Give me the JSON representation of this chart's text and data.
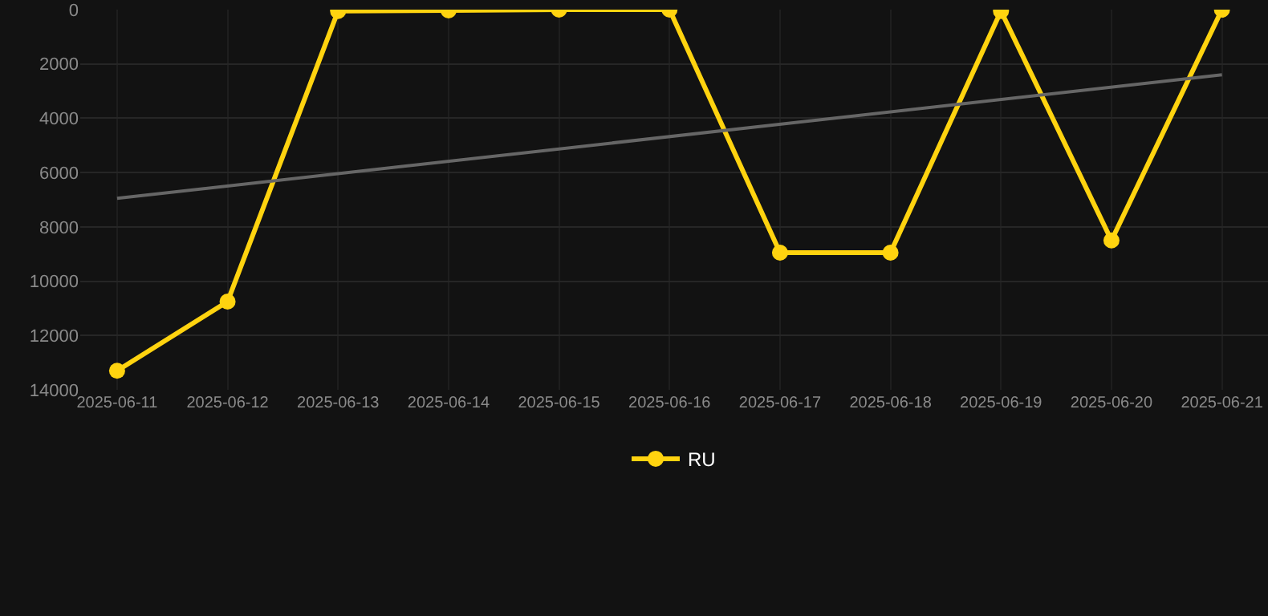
{
  "chart_data": {
    "type": "line",
    "x": [
      "2025-06-11",
      "2025-06-12",
      "2025-06-13",
      "2025-06-14",
      "2025-06-15",
      "2025-06-16",
      "2025-06-17",
      "2025-06-18",
      "2025-06-19",
      "2025-06-20",
      "2025-06-21"
    ],
    "series": [
      {
        "name": "RU",
        "color": "#ffd30f",
        "values": [
          13300,
          10750,
          50,
          30,
          0,
          0,
          8950,
          8950,
          50,
          8500,
          0
        ]
      },
      {
        "type": "line",
        "color": "#666666",
        "x": [
          "2025-06-11",
          "2025-06-21"
        ],
        "values": [
          6950,
          2400
        ],
        "marker": "none"
      }
    ],
    "ylim": [
      14000,
      0
    ],
    "yticks": [
      0,
      2000,
      4000,
      6000,
      8000,
      10000,
      12000,
      14000
    ],
    "xlim": [
      "2025-06-10T16:00",
      "2025-06-21T10:00"
    ],
    "xticks": [
      "2025-06-11",
      "2025-06-12",
      "2025-06-13",
      "2025-06-14",
      "2025-06-15",
      "2025-06-16",
      "2025-06-17",
      "2025-06-18",
      "2025-06-19",
      "2025-06-20",
      "2025-06-21"
    ],
    "grid": true,
    "legend": "bottom",
    "marker": "circle",
    "line_style": "solid"
  }
}
